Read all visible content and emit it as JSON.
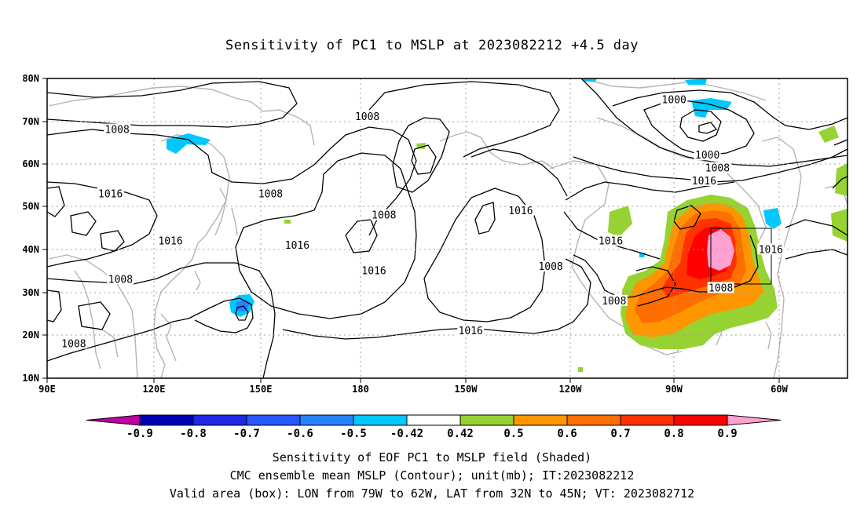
{
  "title": "Sensitivity of PC1 to MSLP at 2023082212 +4.5 day",
  "captions": [
    "Sensitivity of EOF PC1 to MSLP field (Shaded)",
    "CMC ensemble mean MSLP (Contour); unit(mb); IT:2023082212",
    "Valid area (box): LON from 79W to 62W, LAT from 32N to 45N; VT: 2023082712"
  ],
  "map": {
    "lon_labels": [
      "90E",
      "120E",
      "150E",
      "180",
      "150W",
      "120W",
      "90W",
      "60W"
    ],
    "lat_labels": [
      "80N",
      "70N",
      "60N",
      "50N",
      "40N",
      "30N",
      "20N",
      "10N"
    ],
    "valid_box": {
      "lon_min": -79,
      "lon_max": -62,
      "lat_min": 32,
      "lat_max": 45
    },
    "contour_labels": [
      {
        "text": "1008",
        "lon": 111,
        "lat": 68
      },
      {
        "text": "1016",
        "lon": 109,
        "lat": 53
      },
      {
        "text": "1016",
        "lon": 127,
        "lat": 42
      },
      {
        "text": "1008",
        "lon": 112,
        "lat": 33
      },
      {
        "text": "1008",
        "lon": 98,
        "lat": 18
      },
      {
        "text": "1008",
        "lon": 157,
        "lat": 53
      },
      {
        "text": "1016",
        "lon": 165,
        "lat": 41
      },
      {
        "text": "1008",
        "lon": -174,
        "lat": 71
      },
      {
        "text": "1008",
        "lon": -169,
        "lat": 48
      },
      {
        "text": "1016",
        "lon": -172,
        "lat": 35
      },
      {
        "text": "1016",
        "lon": -143,
        "lat": 21
      },
      {
        "text": "1016",
        "lon": -128,
        "lat": 49
      },
      {
        "text": "1008",
        "lon": -119,
        "lat": 36
      },
      {
        "text": "1016",
        "lon": -101,
        "lat": 42
      },
      {
        "text": "1008",
        "lon": -100,
        "lat": 28
      },
      {
        "text": "1000",
        "lon": -82,
        "lat": 75
      },
      {
        "text": "1000",
        "lon": -72,
        "lat": 62
      },
      {
        "text": "1008",
        "lon": -69,
        "lat": 59
      },
      {
        "text": "1016",
        "lon": -73,
        "lat": 56
      },
      {
        "text": "1008",
        "lon": -68,
        "lat": 31
      },
      {
        "text": "1016",
        "lon": -53,
        "lat": 40
      }
    ]
  },
  "colorbar": {
    "labels": [
      "-0.9",
      "-0.8",
      "-0.7",
      "-0.6",
      "-0.5",
      "-0.42",
      "0.42",
      "0.5",
      "0.6",
      "0.7",
      "0.8",
      "0.9"
    ],
    "colors": [
      "#c000a0",
      "#0000b4",
      "#1e28e6",
      "#2856ff",
      "#2882ff",
      "#00c8ff",
      "#ffffff",
      "#96d232",
      "#ff9600",
      "#ff6e00",
      "#ff3200",
      "#ff0000",
      "#ffa0d2"
    ]
  }
}
